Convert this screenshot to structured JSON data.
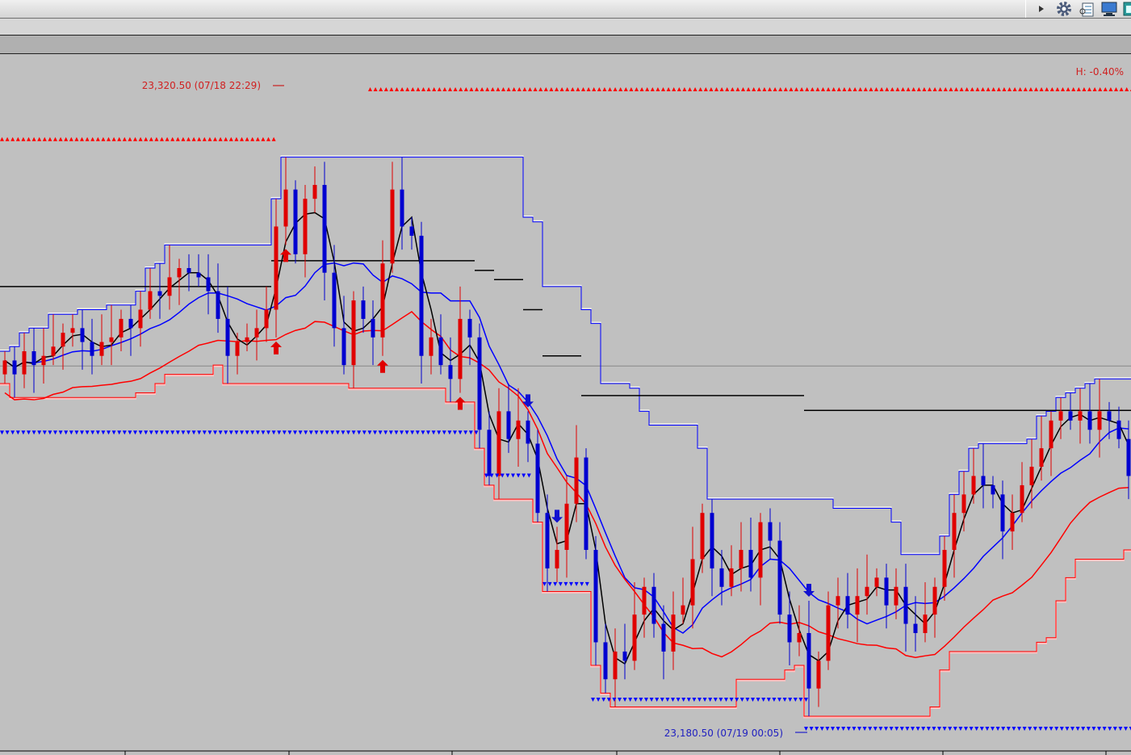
{
  "toolbar": {
    "icons": [
      "play-arrow-icon",
      "gear-icon",
      "document-list-icon",
      "monitor-icon",
      "window-icon"
    ]
  },
  "header_label": "H: -0.40%",
  "colors": {
    "background": "#c0c0c0",
    "bull": "#e00000",
    "bear": "#0000d0",
    "upper_channel": "#0000ff",
    "lower_channel": "#ff0000",
    "ma_blue": "#0000ff",
    "ma_red": "#ff0000",
    "ma_black": "#000000"
  },
  "chart_data": {
    "type": "candlestick",
    "high_label": "23,320.50 (07/18 22:29)",
    "low_label": "23,180.50 (07/19 00:05)",
    "high_value": 23320.5,
    "low_value": 23180.5,
    "ylim": [
      23176,
      23330
    ],
    "grid": false,
    "reference_line": 23259.8,
    "closes": [
      23261,
      23258,
      23263,
      23260,
      23262,
      23264,
      23267,
      23268,
      23265,
      23262,
      23265,
      23266,
      23270,
      23268,
      23272,
      23276,
      23275,
      23279,
      23281,
      23280,
      23279,
      23276,
      23270,
      23262,
      23265,
      23266,
      23268,
      23272,
      23290,
      23298,
      23284,
      23296,
      23299,
      23280,
      23268,
      23260,
      23274,
      23270,
      23266,
      23282,
      23298,
      23290,
      23288,
      23262,
      23266,
      23260,
      23257,
      23270,
      23266,
      23246,
      23236,
      23250,
      23244,
      23248,
      23243,
      23228,
      23216,
      23220,
      23230,
      23240,
      23220,
      23200,
      23192,
      23198,
      23196,
      23206,
      23212,
      23204,
      23198,
      23206,
      23208,
      23218,
      23228,
      23216,
      23212,
      23216,
      23220,
      23214,
      23226,
      23222,
      23206,
      23200,
      23202,
      23190,
      23196,
      23208,
      23210,
      23206,
      23210,
      23212,
      23214,
      23208,
      23212,
      23204,
      23202,
      23206,
      23212,
      23220,
      23228,
      23232,
      23236,
      23234,
      23232,
      23224,
      23228,
      23234,
      23238,
      23242,
      23248,
      23250,
      23248,
      23250,
      23246,
      23250,
      23248,
      23244,
      23236
    ],
    "step_line": [
      {
        "from": 0,
        "to": 28,
        "value": 23277
      },
      {
        "from": 28,
        "to": 49,
        "value": 23282.6
      },
      {
        "from": 49,
        "to": 51,
        "value": 23280.5
      },
      {
        "from": 51,
        "to": 54,
        "value": 23278.5
      },
      {
        "from": 54,
        "to": 56,
        "value": 23272
      },
      {
        "from": 56,
        "to": 60,
        "value": 23262
      },
      {
        "from": 60,
        "to": 62,
        "value": 23253.4
      },
      {
        "from": 62,
        "to": 83,
        "value": 23253.4
      },
      {
        "from": 83,
        "to": 117,
        "value": 23250.2
      }
    ],
    "resistance_markers": [
      {
        "from": 0,
        "to": 28,
        "value": 23309
      },
      {
        "from": 38,
        "to": 117,
        "value": 23319.8
      }
    ],
    "support_markers": [
      {
        "from": 0,
        "to": 49,
        "value": 23245.3
      },
      {
        "from": 50,
        "to": 54,
        "value": 23236
      },
      {
        "from": 56,
        "to": 60,
        "value": 23212.5
      },
      {
        "from": 61,
        "to": 83,
        "value": 23187.5
      },
      {
        "from": 83,
        "to": 117,
        "value": 23181.2
      }
    ],
    "buy_signals": [
      28,
      29,
      39,
      47
    ],
    "sell_signals": [
      54,
      57,
      83
    ]
  }
}
